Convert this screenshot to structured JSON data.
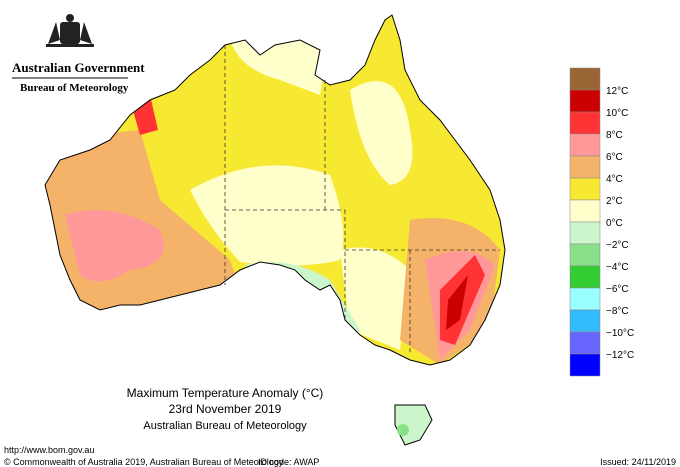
{
  "header": {
    "government": "Australian Government",
    "agency": "Bureau of Meteorology"
  },
  "map": {
    "title": "Maximum Temperature Anomaly (°C)",
    "date": "23rd November 2019",
    "source": "Australian Bureau of Meteorology"
  },
  "legend": {
    "colors": [
      "#996633",
      "#cc0000",
      "#ff3333",
      "#ff9999",
      "#f5b36a",
      "#f7e832",
      "#ffffcc",
      "#ccf5cc",
      "#88e088",
      "#33cc33",
      "#99ffff",
      "#33bbff",
      "#6666ff",
      "#0000ff"
    ],
    "labels": [
      "12°C",
      "10°C",
      "8°C",
      "6°C",
      "4°C",
      "2°C",
      "0°C",
      "−2°C",
      "−4°C",
      "−6°C",
      "−8°C",
      "−10°C",
      "−12°C"
    ]
  },
  "footer": {
    "url": "http://www.bom.gov.au",
    "copyright": "© Commonwealth of Australia 2019, Australian Bureau of Meteorology",
    "id_code": "ID code: AWAP",
    "issued": "Issued: 24/11/2019"
  }
}
